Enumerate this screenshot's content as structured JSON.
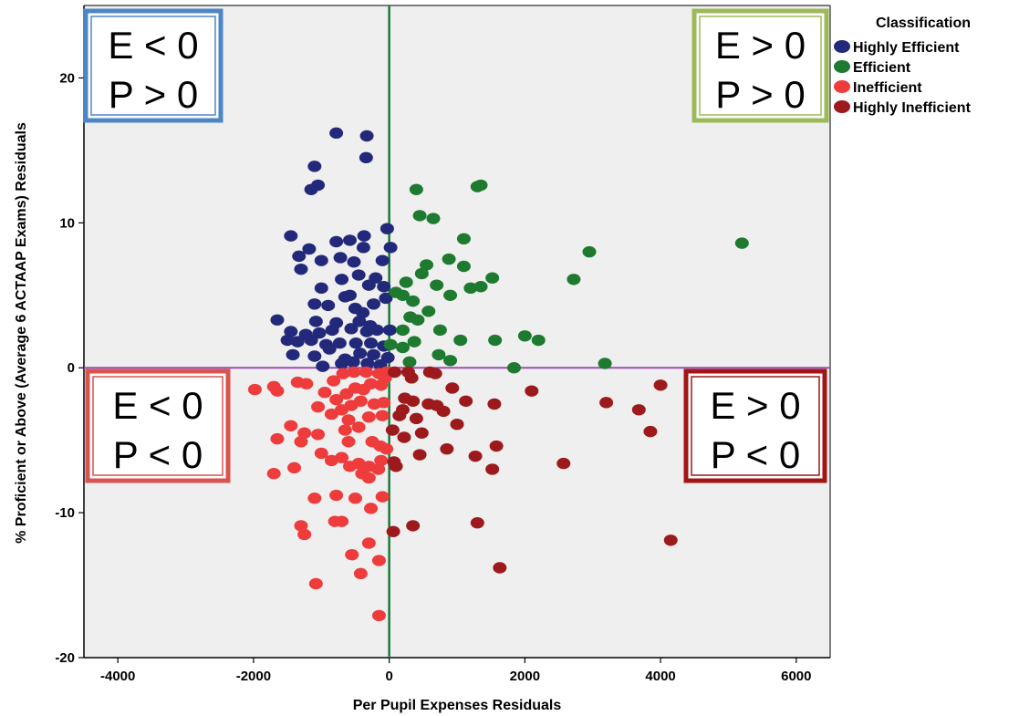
{
  "chart_data": {
    "type": "scatter",
    "xlabel": "Per Pupil Expenses Residuals",
    "ylabel": "% Proficient or Above (Average 6 ACTAAP Exams) Residuals",
    "xlim": [
      -4500,
      6500
    ],
    "ylim": [
      -20,
      25
    ],
    "x_ticks": [
      -4000,
      -2000,
      0,
      2000,
      4000,
      6000
    ],
    "y_ticks": [
      -20,
      -10,
      0,
      10,
      20
    ],
    "x_tick_labels": [
      "-4000",
      "-2000",
      "0",
      "2000",
      "4000",
      "6000"
    ],
    "y_tick_labels": [
      "-20",
      "-10",
      "0",
      "10",
      "20"
    ],
    "grid": false,
    "reference_lines": {
      "vertical": {
        "x": 0,
        "color": "#1a7a3a"
      },
      "horizontal": {
        "y": 0,
        "color": "#9b4fb0"
      }
    },
    "legend": {
      "title": "Classification",
      "position": "right",
      "items": [
        {
          "label": "Highly Efficient",
          "color": "#23297a"
        },
        {
          "label": "Efficient",
          "color": "#1d7a2f"
        },
        {
          "label": "Inefficient",
          "color": "#ee3b3b"
        },
        {
          "label": "Highly Inefficient",
          "color": "#9c1a1c"
        }
      ]
    },
    "quadrant_boxes": [
      {
        "line1": "E < 0",
        "line2": "P > 0",
        "border_color": "#4d86c6",
        "corner": "top-left"
      },
      {
        "line1": "E > 0",
        "line2": "P > 0",
        "border_color": "#9bbb59",
        "corner": "top-right"
      },
      {
        "line1": "E < 0",
        "line2": "P < 0",
        "border_color": "#d9534f",
        "corner": "bottom-left"
      },
      {
        "line1": "E > 0",
        "line2": "P < 0",
        "border_color": "#a11515",
        "corner": "bottom-right"
      }
    ],
    "series": [
      {
        "name": "Highly Efficient",
        "color": "#23297a",
        "points": [
          [
            -780,
            16.2
          ],
          [
            -330,
            16.0
          ],
          [
            -340,
            14.5
          ],
          [
            -1100,
            13.9
          ],
          [
            -1050,
            12.6
          ],
          [
            -1150,
            12.3
          ],
          [
            -1450,
            9.1
          ],
          [
            -780,
            8.7
          ],
          [
            -370,
            9.1
          ],
          [
            -30,
            9.6
          ],
          [
            -580,
            8.8
          ],
          [
            -1180,
            8.2
          ],
          [
            -1330,
            7.7
          ],
          [
            -1000,
            7.4
          ],
          [
            -720,
            7.6
          ],
          [
            -520,
            7.3
          ],
          [
            -380,
            8.3
          ],
          [
            -100,
            7.4
          ],
          [
            20,
            8.3
          ],
          [
            -1300,
            6.8
          ],
          [
            -700,
            6.1
          ],
          [
            -450,
            6.4
          ],
          [
            -200,
            6.2
          ],
          [
            -1000,
            5.5
          ],
          [
            -580,
            5.0
          ],
          [
            -300,
            5.7
          ],
          [
            -80,
            5.6
          ],
          [
            -1100,
            4.4
          ],
          [
            -900,
            4.3
          ],
          [
            -650,
            4.9
          ],
          [
            -500,
            4.1
          ],
          [
            -390,
            3.8
          ],
          [
            -230,
            4.4
          ],
          [
            -50,
            4.8
          ],
          [
            -1650,
            3.3
          ],
          [
            -1080,
            3.2
          ],
          [
            -780,
            3.1
          ],
          [
            -440,
            3.2
          ],
          [
            -280,
            2.9
          ],
          [
            -1450,
            2.5
          ],
          [
            -1230,
            2.3
          ],
          [
            -1030,
            2.4
          ],
          [
            -840,
            2.6
          ],
          [
            -560,
            2.7
          ],
          [
            -330,
            2.5
          ],
          [
            -180,
            2.6
          ],
          [
            10,
            2.6
          ],
          [
            -1500,
            1.9
          ],
          [
            -1350,
            1.8
          ],
          [
            -1150,
            1.9
          ],
          [
            -930,
            1.6
          ],
          [
            -730,
            1.7
          ],
          [
            -490,
            1.7
          ],
          [
            -270,
            1.7
          ],
          [
            -80,
            1.5
          ],
          [
            -1420,
            0.9
          ],
          [
            -1100,
            0.8
          ],
          [
            -880,
            1.3
          ],
          [
            -650,
            0.6
          ],
          [
            -430,
            1.0
          ],
          [
            -230,
            0.9
          ],
          [
            -20,
            0.7
          ],
          [
            -980,
            0.1
          ],
          [
            -700,
            0.3
          ],
          [
            -530,
            0.4
          ],
          [
            -320,
            0.3
          ],
          [
            -130,
            0.2
          ]
        ]
      },
      {
        "name": "Efficient",
        "color": "#1d7a2f",
        "points": [
          [
            1300,
            12.5
          ],
          [
            1350,
            12.6
          ],
          [
            400,
            12.3
          ],
          [
            450,
            10.5
          ],
          [
            650,
            10.3
          ],
          [
            1100,
            8.9
          ],
          [
            5200,
            8.6
          ],
          [
            2950,
            8.0
          ],
          [
            880,
            7.5
          ],
          [
            550,
            7.1
          ],
          [
            1100,
            7.0
          ],
          [
            2720,
            6.1
          ],
          [
            480,
            6.5
          ],
          [
            250,
            5.9
          ],
          [
            1520,
            6.2
          ],
          [
            700,
            5.7
          ],
          [
            1200,
            5.5
          ],
          [
            1350,
            5.6
          ],
          [
            100,
            5.2
          ],
          [
            200,
            5.0
          ],
          [
            900,
            5.0
          ],
          [
            350,
            4.6
          ],
          [
            580,
            3.9
          ],
          [
            310,
            3.5
          ],
          [
            420,
            3.3
          ],
          [
            2000,
            2.2
          ],
          [
            200,
            2.6
          ],
          [
            750,
            2.6
          ],
          [
            1050,
            1.9
          ],
          [
            2200,
            1.9
          ],
          [
            1560,
            1.9
          ],
          [
            20,
            1.6
          ],
          [
            200,
            1.4
          ],
          [
            370,
            1.8
          ],
          [
            730,
            0.9
          ],
          [
            900,
            0.5
          ],
          [
            300,
            0.4
          ],
          [
            3180,
            0.3
          ],
          [
            1840,
            0.0
          ]
        ]
      },
      {
        "name": "Inefficient",
        "color": "#ee3b3b",
        "points": [
          [
            -1980,
            -1.5
          ],
          [
            -1700,
            -1.3
          ],
          [
            -1350,
            -1.0
          ],
          [
            -1650,
            -1.6
          ],
          [
            -1220,
            -1.1
          ],
          [
            -820,
            -0.9
          ],
          [
            -680,
            -0.4
          ],
          [
            -520,
            -0.3
          ],
          [
            -340,
            -0.3
          ],
          [
            -150,
            -0.4
          ],
          [
            -40,
            -0.3
          ],
          [
            -950,
            -1.7
          ],
          [
            -780,
            -2.2
          ],
          [
            -630,
            -1.8
          ],
          [
            -500,
            -1.4
          ],
          [
            -380,
            -1.5
          ],
          [
            -270,
            -1.1
          ],
          [
            -120,
            -1.2
          ],
          [
            -60,
            -0.7
          ],
          [
            -1050,
            -2.7
          ],
          [
            -700,
            -2.9
          ],
          [
            -560,
            -2.6
          ],
          [
            -420,
            -2.3
          ],
          [
            -220,
            -2.5
          ],
          [
            -80,
            -2.4
          ],
          [
            -850,
            -3.2
          ],
          [
            -600,
            -3.6
          ],
          [
            -300,
            -3.4
          ],
          [
            -100,
            -3.3
          ],
          [
            -1450,
            -4.0
          ],
          [
            -1250,
            -4.5
          ],
          [
            -1050,
            -4.6
          ],
          [
            -650,
            -4.3
          ],
          [
            -450,
            -4.1
          ],
          [
            -1650,
            -4.9
          ],
          [
            -1300,
            -5.1
          ],
          [
            -600,
            -5.1
          ],
          [
            -250,
            -5.1
          ],
          [
            -130,
            -5.4
          ],
          [
            -40,
            -5.6
          ],
          [
            -1000,
            -5.9
          ],
          [
            -700,
            -6.2
          ],
          [
            -450,
            -6.6
          ],
          [
            -300,
            -6.8
          ],
          [
            -120,
            -6.4
          ],
          [
            -850,
            -6.4
          ],
          [
            -580,
            -6.8
          ],
          [
            -1700,
            -7.3
          ],
          [
            -1400,
            -6.9
          ],
          [
            -400,
            -7.3
          ],
          [
            -160,
            -7.0
          ],
          [
            -300,
            -7.6
          ],
          [
            -1100,
            -9.0
          ],
          [
            -780,
            -8.8
          ],
          [
            -500,
            -9.0
          ],
          [
            -270,
            -9.7
          ],
          [
            -100,
            -8.9
          ],
          [
            -1300,
            -10.9
          ],
          [
            -1250,
            -11.5
          ],
          [
            -800,
            -10.6
          ],
          [
            -700,
            -10.6
          ],
          [
            -550,
            -12.9
          ],
          [
            -300,
            -12.1
          ],
          [
            -150,
            -13.3
          ],
          [
            -1080,
            -14.9
          ],
          [
            -420,
            -14.2
          ],
          [
            -150,
            -17.1
          ]
        ]
      },
      {
        "name": "Highly Inefficient",
        "color": "#9c1a1c",
        "points": [
          [
            80,
            -0.3
          ],
          [
            280,
            -0.3
          ],
          [
            600,
            -0.3
          ],
          [
            680,
            -0.4
          ],
          [
            930,
            -1.4
          ],
          [
            4000,
            -1.2
          ],
          [
            2100,
            -1.6
          ],
          [
            1130,
            -2.3
          ],
          [
            230,
            -2.1
          ],
          [
            350,
            -2.3
          ],
          [
            580,
            -2.5
          ],
          [
            1550,
            -2.5
          ],
          [
            3200,
            -2.4
          ],
          [
            3680,
            -2.9
          ],
          [
            800,
            -3.0
          ],
          [
            400,
            -3.5
          ],
          [
            150,
            -3.3
          ],
          [
            1000,
            -3.9
          ],
          [
            3850,
            -4.4
          ],
          [
            50,
            -4.3
          ],
          [
            480,
            -4.5
          ],
          [
            220,
            -4.8
          ],
          [
            1580,
            -5.4
          ],
          [
            850,
            -5.6
          ],
          [
            450,
            -6.0
          ],
          [
            1270,
            -6.1
          ],
          [
            70,
            -6.5
          ],
          [
            100,
            -6.8
          ],
          [
            2570,
            -6.6
          ],
          [
            1520,
            -7.0
          ],
          [
            350,
            -10.9
          ],
          [
            60,
            -11.3
          ],
          [
            1300,
            -10.7
          ],
          [
            4150,
            -11.9
          ],
          [
            1630,
            -13.8
          ],
          [
            200,
            -2.9
          ],
          [
            700,
            -2.6
          ],
          [
            330,
            -0.7
          ]
        ]
      }
    ]
  }
}
